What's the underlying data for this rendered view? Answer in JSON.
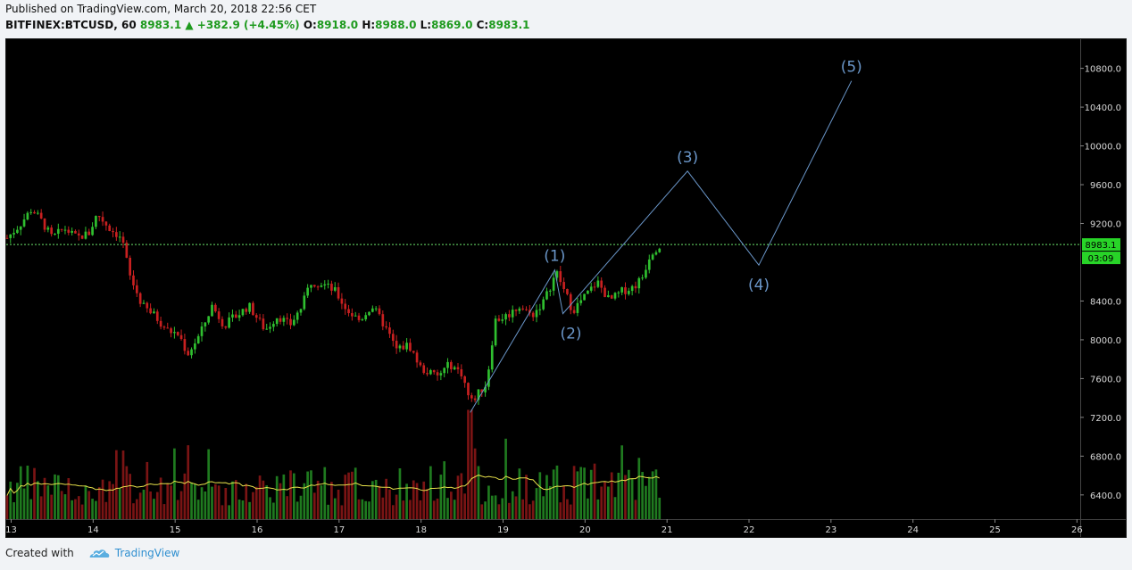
{
  "header": {
    "published": "Published on TradingView.com, March 20, 2018 22:56 CET",
    "symbol": "BITFINEX:BTCUSD, 60",
    "last": "8983.1",
    "change_arrow": "▲",
    "change": "+382.9 (+4.45%)",
    "o_label": "O:",
    "o": "8918.0",
    "h_label": "H:",
    "h": "8988.0",
    "l_label": "L:",
    "l": "8869.0",
    "c_label": "C:",
    "c": "8983.1"
  },
  "footer": {
    "created_with": "Created with",
    "brand": "TradingView",
    "brand_icon": "tradingview-cloud-icon"
  },
  "colors": {
    "background": "#000000",
    "up": "#2fbf2f",
    "down": "#c82020",
    "volume_up": "#1f7a1f",
    "volume_down": "#7a1414",
    "ma": "#e6e04a",
    "wave": "#6a96c9",
    "price_line": "#6be36b",
    "price_badge": "#28d428"
  },
  "chart_data": {
    "type": "candlestick",
    "symbol": "BITFINEX:BTCUSD",
    "interval": "60",
    "x_ticks": [
      "13",
      "14",
      "15",
      "16",
      "17",
      "18",
      "19",
      "20",
      "21",
      "22",
      "23",
      "24",
      "25",
      "26"
    ],
    "y_ticks": [
      "10800.0",
      "10400.0",
      "10000.0",
      "9600.0",
      "9200.0",
      "8400.0",
      "8000.0",
      "7600.0",
      "7200.0",
      "6800.0",
      "6400.0"
    ],
    "ylim": [
      6150,
      11100
    ],
    "xlim": [
      12.94,
      26.04
    ],
    "last_price": "8983.1",
    "countdown": "03:09",
    "price_path": [
      [
        12.95,
        9050
      ],
      [
        13.1,
        9180
      ],
      [
        13.25,
        9350
      ],
      [
        13.35,
        9250
      ],
      [
        13.5,
        9050
      ],
      [
        13.65,
        9150
      ],
      [
        13.8,
        9050
      ],
      [
        13.95,
        9100
      ],
      [
        14.05,
        9300
      ],
      [
        14.2,
        9150
      ],
      [
        14.35,
        9050
      ],
      [
        14.45,
        8650
      ],
      [
        14.6,
        8350
      ],
      [
        14.75,
        8250
      ],
      [
        14.9,
        8100
      ],
      [
        15.05,
        8050
      ],
      [
        15.15,
        7850
      ],
      [
        15.3,
        8050
      ],
      [
        15.45,
        8350
      ],
      [
        15.6,
        8150
      ],
      [
        15.75,
        8250
      ],
      [
        15.9,
        8350
      ],
      [
        16.1,
        8100
      ],
      [
        16.25,
        8250
      ],
      [
        16.4,
        8150
      ],
      [
        16.55,
        8350
      ],
      [
        16.65,
        8600
      ],
      [
        16.8,
        8580
      ],
      [
        16.95,
        8500
      ],
      [
        17.1,
        8300
      ],
      [
        17.25,
        8200
      ],
      [
        17.4,
        8350
      ],
      [
        17.55,
        8150
      ],
      [
        17.7,
        7900
      ],
      [
        17.85,
        7950
      ],
      [
        18.0,
        7700
      ],
      [
        18.2,
        7620
      ],
      [
        18.35,
        7750
      ],
      [
        18.5,
        7650
      ],
      [
        18.6,
        7350
      ],
      [
        18.7,
        7450
      ],
      [
        18.8,
        7550
      ],
      [
        18.9,
        8200
      ],
      [
        19.05,
        8250
      ],
      [
        19.2,
        8350
      ],
      [
        19.35,
        8250
      ],
      [
        19.5,
        8400
      ],
      [
        19.65,
        8700
      ],
      [
        19.75,
        8500
      ],
      [
        19.85,
        8300
      ],
      [
        20.0,
        8450
      ],
      [
        20.15,
        8600
      ],
      [
        20.3,
        8400
      ],
      [
        20.45,
        8500
      ],
      [
        20.6,
        8550
      ],
      [
        20.7,
        8650
      ],
      [
        20.8,
        8900
      ],
      [
        20.92,
        8983
      ]
    ],
    "volume_ma_level": 0.28,
    "waves": {
      "points": [
        {
          "label": "(1)",
          "x": 19.63,
          "y": 8720
        },
        {
          "label": "(2)",
          "x": 19.73,
          "y": 8270
        },
        {
          "label": "(3)",
          "x": 21.25,
          "y": 9740
        },
        {
          "label": "(4)",
          "x": 22.12,
          "y": 8770
        },
        {
          "label": "(5)",
          "x": 23.25,
          "y": 10670
        }
      ],
      "start": {
        "x": 18.6,
        "y": 7250
      }
    }
  }
}
